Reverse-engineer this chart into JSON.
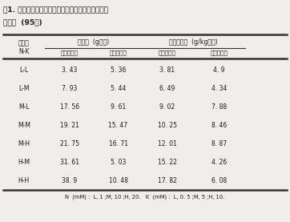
{
  "title_line1": "表1. 培養液レベルによる塊根収量と塊根のタンパク",
  "title_line2": "質濃度  (95年)",
  "col_header_left": "培養液\nN-K",
  "col_group1": "塊根重  (g生重)",
  "col_group2": "蛋白質濃度  (g/kg生重)",
  "sub_headers": [
    "ベニオトメ",
    "ベニハヤト",
    "ベニオトメ",
    "ベニハヤト"
  ],
  "rows": [
    [
      "L-L",
      "3. 43",
      "5. 36",
      "3. 81",
      "4. 9"
    ],
    [
      "L-M",
      "7. 93",
      "5. 44",
      "6. 49",
      "4. 34"
    ],
    [
      "M-L",
      "17. 56",
      "9. 61",
      "9. 02",
      "7. 88"
    ],
    [
      "M-M",
      "19. 21",
      "15. 47",
      "10. 25",
      "8. 46"
    ],
    [
      "M-H",
      "21. 75",
      "16. 71",
      "12. 01",
      "8. 87"
    ],
    [
      "H-M",
      "31. 61",
      "5. 03",
      "15. 22",
      "4. 26"
    ],
    [
      "H-H",
      "38. 9",
      "10. 48",
      "17. 82",
      "6. 08"
    ]
  ],
  "footnote": "N  (mM) :  L, 1 ;M, 10 ;H, 20.   K  (mM) :  L, 0. 5 ;M, 5 ;H, 10.",
  "bg_color": "#f0eeeb",
  "text_color": "#1a1a1a",
  "line_color": "#333333"
}
